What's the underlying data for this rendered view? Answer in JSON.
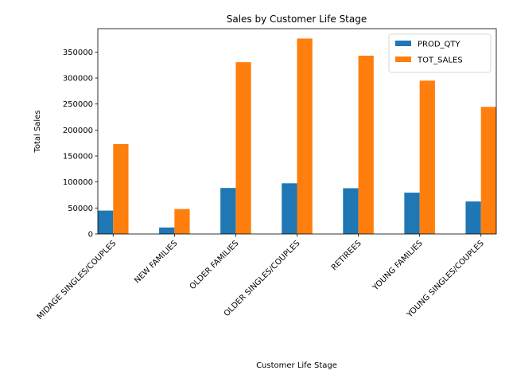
{
  "chart_data": {
    "type": "bar",
    "title": "Sales by Customer Life Stage",
    "xlabel": "Customer Life Stage",
    "ylabel": "Total Sales",
    "categories": [
      "MIDAGE SINGLES/COUPLES",
      "NEW FAMILIES",
      "OLDER FAMILIES",
      "OLDER SINGLES/COUPLES",
      "RETIREES",
      "YOUNG FAMILIES",
      "YOUNG SINGLES/COUPLES"
    ],
    "series": [
      {
        "name": "PROD_QTY",
        "color": "#1f77b4",
        "values": [
          45000,
          12500,
          88500,
          97500,
          88000,
          79500,
          62500
        ]
      },
      {
        "name": "TOT_SALES",
        "color": "#ff7f0e",
        "values": [
          173000,
          48000,
          330500,
          376000,
          343000,
          295000,
          244500
        ]
      }
    ],
    "yticks": [
      0,
      50000,
      100000,
      150000,
      200000,
      250000,
      300000,
      350000
    ],
    "ylim": [
      0,
      395000
    ],
    "grid": false,
    "legend_position": "top-right"
  }
}
